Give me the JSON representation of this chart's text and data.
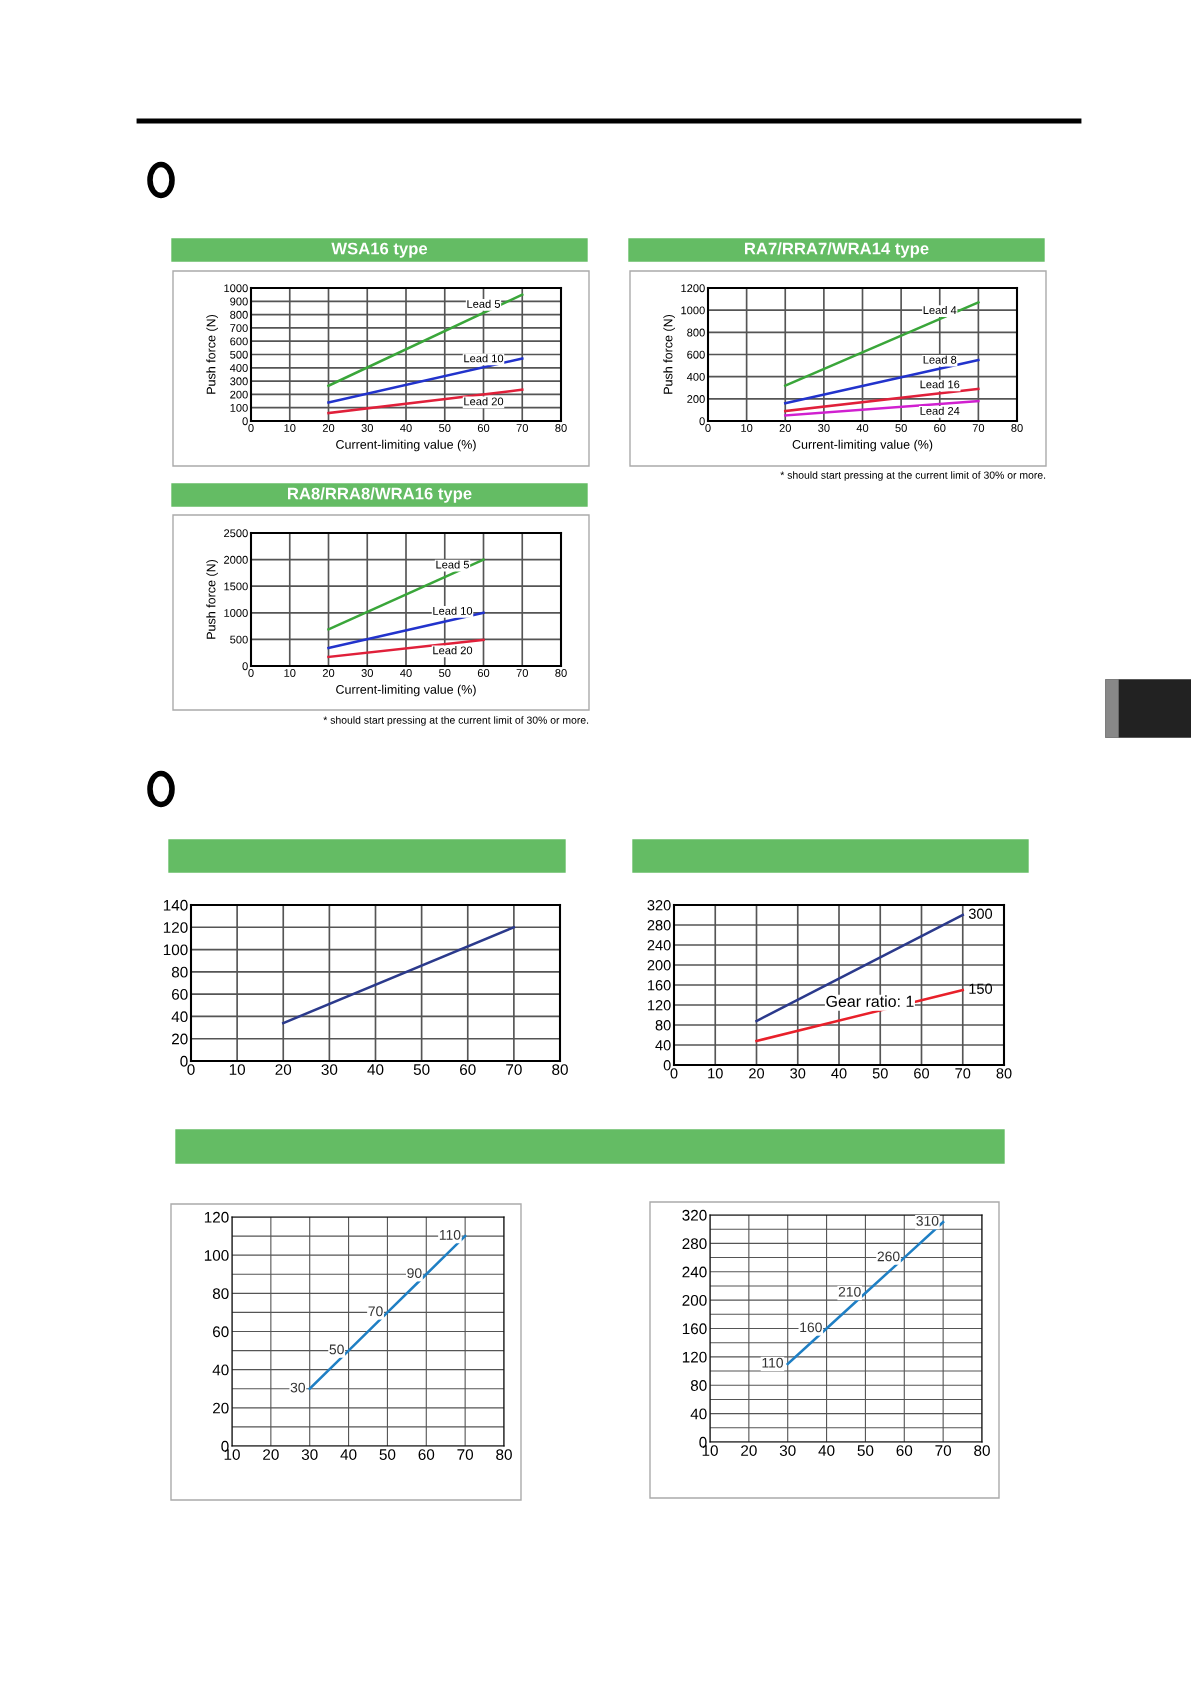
{
  "chart_data": [
    {
      "type": "line",
      "title": "WSA16 type",
      "xlabel": "Current-limiting value (%)",
      "ylabel": "Push force (N)",
      "x": [
        20,
        70
      ],
      "xlim": [
        0,
        80
      ],
      "xticks": [
        0,
        10,
        20,
        30,
        40,
        50,
        60,
        70,
        80
      ],
      "ylim": [
        0,
        1000
      ],
      "yticks": [
        0,
        100,
        200,
        300,
        400,
        500,
        600,
        700,
        800,
        900,
        1000
      ],
      "grid": true,
      "series": [
        {
          "name": "Lead 5",
          "color": "#3aa63a",
          "values": [
            265,
            950
          ]
        },
        {
          "name": "Lead 10",
          "color": "#2233cc",
          "values": [
            140,
            470
          ]
        },
        {
          "name": "Lead 20",
          "color": "#e0203a",
          "values": [
            60,
            235
          ]
        }
      ]
    },
    {
      "type": "line",
      "title": "RA7/RRA7/WRA14 type",
      "xlabel": "Current-limiting value (%)",
      "ylabel": "Push force (N)",
      "x": [
        20,
        70
      ],
      "xlim": [
        0,
        80
      ],
      "xticks": [
        0,
        10,
        20,
        30,
        40,
        50,
        60,
        70,
        80
      ],
      "ylim": [
        0,
        1200
      ],
      "yticks": [
        0,
        200,
        400,
        600,
        800,
        1000,
        1200
      ],
      "grid": true,
      "annotations": [
        "* should start pressing at the current limit of 30% or more."
      ],
      "series": [
        {
          "name": "Lead 4",
          "color": "#3aa63a",
          "values": [
            320,
            1070
          ]
        },
        {
          "name": "Lead 8",
          "color": "#2233cc",
          "values": [
            160,
            550
          ]
        },
        {
          "name": "Lead 16",
          "color": "#e0203a",
          "values": [
            90,
            290
          ]
        },
        {
          "name": "Lead 24",
          "color": "#d020d0",
          "values": [
            50,
            180
          ]
        }
      ]
    },
    {
      "type": "line",
      "title": "RA8/RRA8/WRA16 type",
      "xlabel": "Current-limiting value (%)",
      "ylabel": "Push force (N)",
      "x": [
        20,
        60
      ],
      "xlim": [
        0,
        80
      ],
      "xticks": [
        0,
        10,
        20,
        30,
        40,
        50,
        60,
        70,
        80
      ],
      "ylim": [
        0,
        2500
      ],
      "yticks": [
        0,
        500,
        1000,
        1500,
        2000,
        2500
      ],
      "grid": true,
      "annotations": [
        "* should start pressing at the current limit of 30% or more."
      ],
      "series": [
        {
          "name": "Lead 5",
          "color": "#3aa63a",
          "values": [
            690,
            2000
          ]
        },
        {
          "name": "Lead 10",
          "color": "#2233cc",
          "values": [
            340,
            1000
          ]
        },
        {
          "name": "Lead 20",
          "color": "#e0203a",
          "values": [
            170,
            490
          ]
        }
      ]
    },
    {
      "type": "line",
      "x": [
        20,
        70
      ],
      "xlim": [
        0,
        80
      ],
      "xticks": [
        0,
        10,
        20,
        30,
        40,
        50,
        60,
        70,
        80
      ],
      "ylim": [
        0,
        140
      ],
      "yticks": [
        0,
        20,
        40,
        60,
        80,
        100,
        120,
        140
      ],
      "grid": true,
      "series": [
        {
          "color": "#2b3a8c",
          "values": [
            34,
            120
          ]
        }
      ]
    },
    {
      "type": "line",
      "x": [
        20,
        70
      ],
      "xlim": [
        0,
        80
      ],
      "xticks": [
        0,
        10,
        20,
        30,
        40,
        50,
        60,
        70,
        80
      ],
      "ylim": [
        0,
        320
      ],
      "yticks": [
        0,
        40,
        80,
        120,
        160,
        200,
        240,
        280,
        320
      ],
      "grid": true,
      "series": [
        {
          "color": "#2b3a8c",
          "values": [
            88,
            300
          ],
          "value_labels": [
            null,
            "300"
          ]
        },
        {
          "name": "Gear ratio: 1",
          "color": "#e8202a",
          "values": [
            48,
            150
          ],
          "value_labels": [
            null,
            "150"
          ]
        }
      ]
    },
    {
      "type": "line",
      "x": [
        30,
        40,
        50,
        60,
        70
      ],
      "xlim": [
        10,
        80
      ],
      "xticks": [
        10,
        20,
        30,
        40,
        50,
        60,
        70,
        80
      ],
      "ylim": [
        0,
        120
      ],
      "yticks": [
        0,
        {
          "value": 10,
          "label": null
        },
        20,
        {
          "value": 30,
          "label": null
        },
        40,
        {
          "value": 50,
          "label": null
        },
        60,
        {
          "value": 70,
          "label": null
        },
        80,
        {
          "value": 90,
          "label": null
        },
        100,
        {
          "value": 110,
          "label": null
        },
        120
      ],
      "grid": true,
      "data_labels": true,
      "series": [
        {
          "color": "#1f7fc4",
          "values": [
            30,
            50,
            70,
            90,
            110
          ]
        }
      ]
    },
    {
      "type": "line",
      "x": [
        30,
        40,
        50,
        60,
        70
      ],
      "xlim": [
        10,
        80
      ],
      "xticks": [
        10,
        20,
        30,
        40,
        50,
        60,
        70,
        80
      ],
      "ylim": [
        0,
        320
      ],
      "yticks": [
        0,
        {
          "value": 20,
          "label": null
        },
        40,
        {
          "value": 60,
          "label": null
        },
        80,
        {
          "value": 100,
          "label": null
        },
        120,
        {
          "value": 140,
          "label": null
        },
        160,
        {
          "value": 180,
          "label": null
        },
        200,
        {
          "value": 220,
          "label": null
        },
        240,
        {
          "value": 260,
          "label": null
        },
        280,
        {
          "value": 300,
          "label": null
        },
        320
      ],
      "grid": true,
      "data_labels": true,
      "series": [
        {
          "color": "#1f7fc4",
          "values": [
            110,
            160,
            210,
            260,
            310
          ]
        }
      ]
    }
  ]
}
